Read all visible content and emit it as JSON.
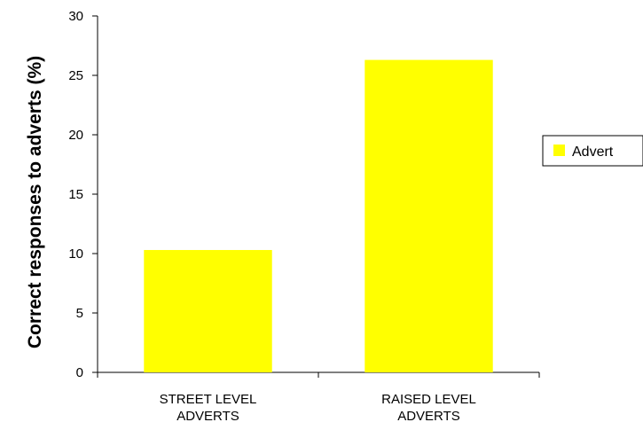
{
  "chart_data": {
    "type": "bar",
    "categories": [
      [
        "STREET LEVEL",
        "ADVERTS"
      ],
      [
        "RAISED LEVEL",
        "ADVERTS"
      ]
    ],
    "series": [
      {
        "name": "Advert",
        "values": [
          10.3,
          26.3
        ],
        "color": "#ffff00"
      }
    ],
    "ylabel": "Correct responses to adverts (%)",
    "xlabel": "",
    "title": "",
    "ylim": [
      0,
      30
    ],
    "yticks": [
      0,
      5,
      10,
      15,
      20,
      25,
      30
    ],
    "grid": false,
    "legend_position": "right"
  }
}
